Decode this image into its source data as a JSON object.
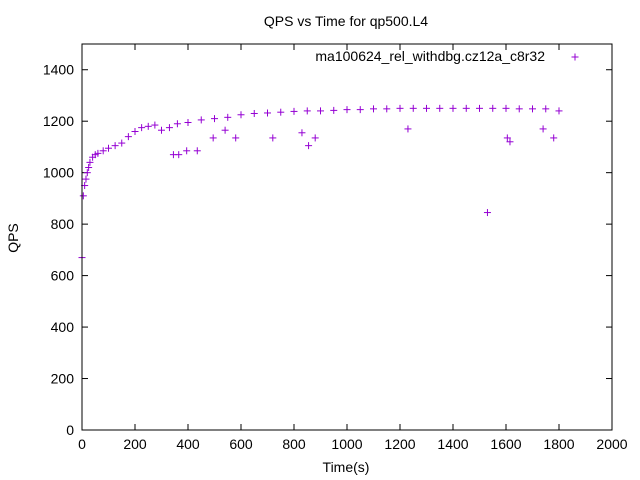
{
  "chart_data": {
    "type": "scatter",
    "title": "QPS vs Time for qp500.L4",
    "xlabel": "Time(s)",
    "ylabel": "QPS",
    "xlim": [
      0,
      2000
    ],
    "ylim": [
      0,
      1500
    ],
    "xticks": [
      0,
      200,
      400,
      600,
      800,
      1000,
      1200,
      1400,
      1600,
      1800,
      2000
    ],
    "yticks": [
      0,
      200,
      400,
      600,
      800,
      1000,
      1200,
      1400
    ],
    "grid": false,
    "legend_position": "top-right",
    "series": [
      {
        "name": "ma100624_rel_withdbg.cz12a_c8r32",
        "color": "#9400d3",
        "marker": "plus",
        "x": [
          0,
          5,
          10,
          15,
          20,
          25,
          30,
          40,
          50,
          60,
          80,
          100,
          125,
          150,
          175,
          200,
          225,
          250,
          275,
          300,
          330,
          360,
          400,
          450,
          500,
          550,
          600,
          650,
          700,
          750,
          800,
          850,
          900,
          950,
          1000,
          1050,
          1100,
          1150,
          1200,
          1250,
          1300,
          1350,
          1400,
          1450,
          1500,
          1550,
          1600,
          1650,
          1700,
          1750,
          1800,
          345,
          365,
          395,
          435,
          495,
          540,
          580,
          720,
          830,
          855,
          880,
          1230,
          1530,
          1605,
          1615,
          1740,
          1780
        ],
        "y": [
          670,
          910,
          950,
          975,
          1000,
          1020,
          1040,
          1060,
          1070,
          1075,
          1085,
          1095,
          1105,
          1115,
          1140,
          1160,
          1175,
          1180,
          1185,
          1165,
          1175,
          1190,
          1195,
          1205,
          1210,
          1215,
          1225,
          1230,
          1232,
          1235,
          1238,
          1240,
          1240,
          1242,
          1245,
          1245,
          1248,
          1248,
          1250,
          1250,
          1250,
          1250,
          1250,
          1250,
          1250,
          1250,
          1250,
          1248,
          1248,
          1248,
          1240,
          1070,
          1070,
          1085,
          1085,
          1135,
          1165,
          1135,
          1135,
          1155,
          1105,
          1135,
          1170,
          845,
          1135,
          1120,
          1170,
          1135
        ]
      }
    ]
  }
}
